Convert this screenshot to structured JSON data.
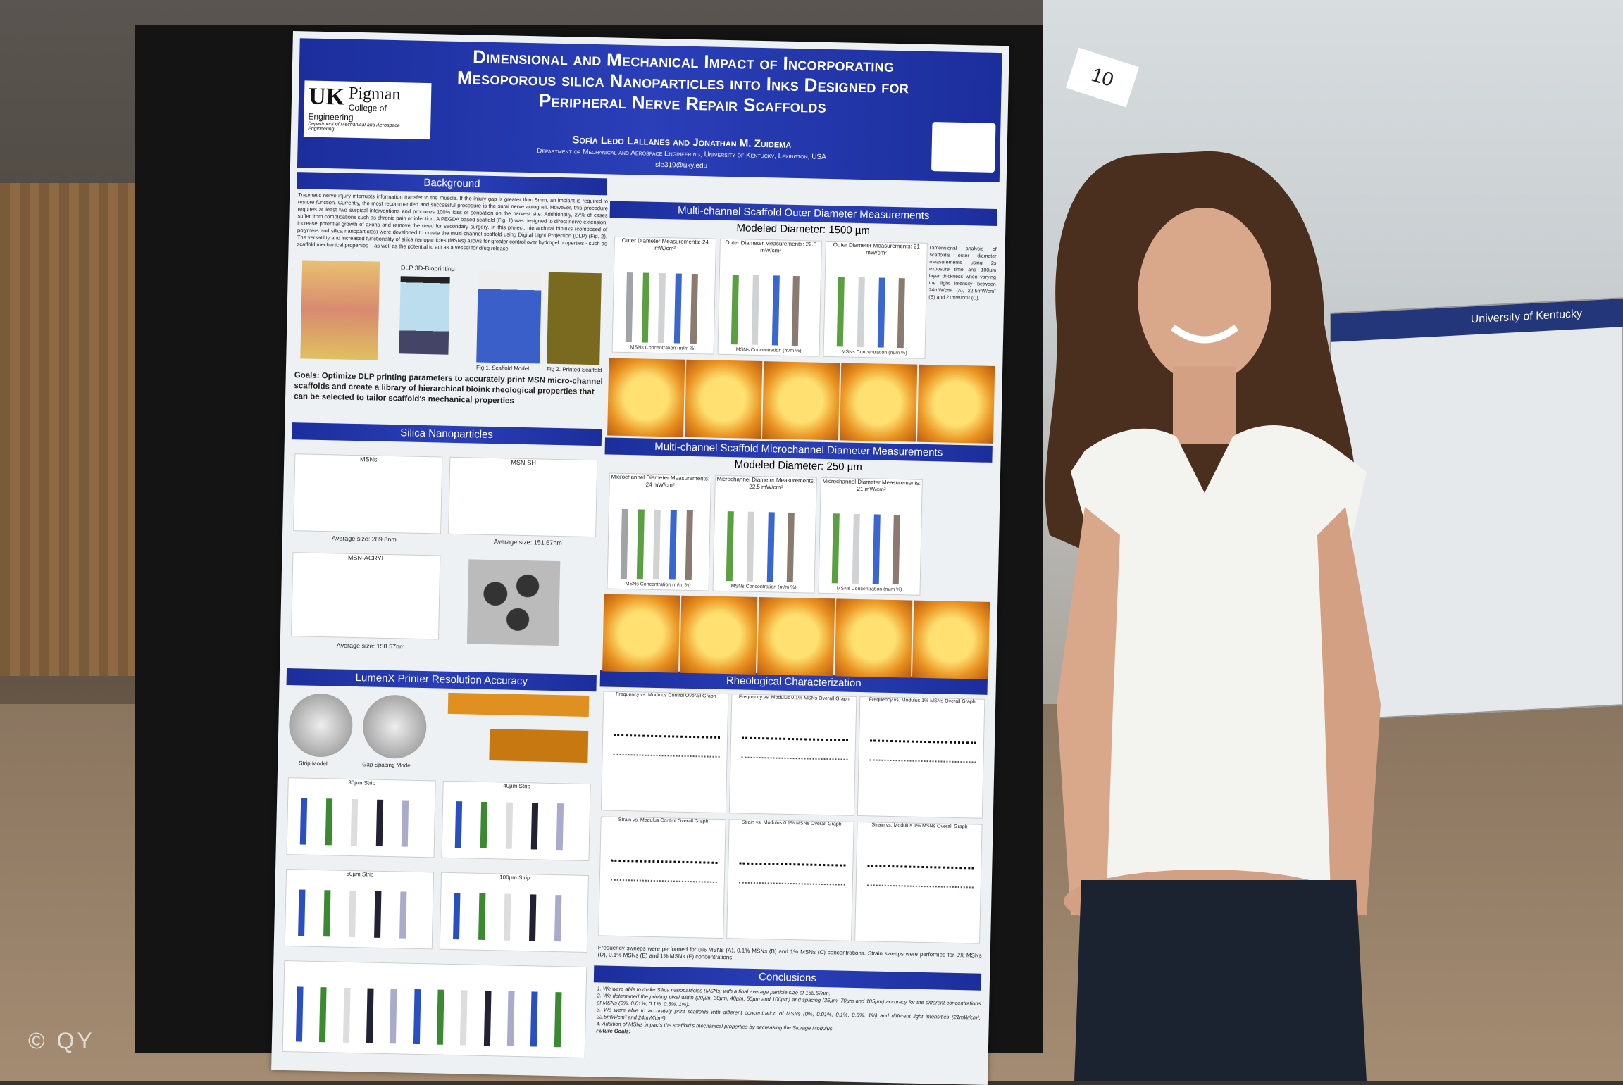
{
  "poster": {
    "title": "Dimensional and Mechanical Impact of Incorporating Mesoporous silica Nanoparticles into Inks Designed for Peripheral Nerve Repair Scaffolds",
    "authors": "Sofía Ledo Lallanes and Jonathan M. Zuidema",
    "department": "Department of Mechanical and Aerospace Engineering, University of Kentucky, Lexington, USA",
    "email": "sle319@uky.edu",
    "logo": {
      "uk": "UK",
      "name": "Pigman",
      "college": "College of Engineering",
      "dept": "Department of Mechanical and Aerospace Engineering"
    },
    "sections": {
      "background": "Background",
      "background_text": "Traumatic nerve injury interrupts information transfer to the muscle. If the injury gap is greater than 5mm, an implant is required to restore function. Currently, the most recommended and successful procedure is the sural nerve autograft. However, this procedure requires at least two surgical interventions and produces 100% loss of sensation on the harvest site. Additionally, 27% of cases suffer from complications such as chronic pain or infection. A PEGDA based scaffold (Fig. 1) was designed to direct nerve extension, increase potential growth of axons and remove the need for secondary surgery. In this project, hierarchical bioinks (composed of polymers and silica nanoparticles) were developed to create the multi-channel scaffold using Digital Light Projection (DLP) (Fig. 2). The versatility and increased functionality of silica nanoparticles (MSNs) allows for greater control over hydrogel properties - such as scaffold mechanical properties – as well as the potential to act as a vessel for drug release.",
      "fig1": "Fig 1. Scaffold Model",
      "fig2": "Fig 2. Printed Scaffold",
      "dlp": "DLP 3D-Bioprinting",
      "goals": "Goals: Optimize DLP printing parameters to accurately print MSN micro-channel scaffolds and create a library of hierarchical bioink rheological properties that can be selected to tailor scaffold's mechanical properties",
      "silica": "Silica Nanoparticles",
      "silica_labels": [
        "MSNs",
        "MSN-SH",
        "MSN-ACRYL"
      ],
      "silica_sizes": [
        "Average size: 289.8nm",
        "Average size: 151.67nm",
        "Average size: 158.57nm"
      ],
      "lumenx": "LumenX Printer Resolution Accuracy",
      "lumenx_labels": [
        "Strip Model",
        "Gap Spacing Model",
        "30µm Strip",
        "40µm Strip",
        "50µm Strip",
        "100µm Strip"
      ],
      "outer": "Multi-channel Scaffold Outer Diameter Measurements",
      "outer_model": "Modeled Diameter: 1500 µm",
      "outer_charts": [
        "Outer Diameter Measurements: 24 mW/cm²",
        "Outer Diameter Measurements: 22.5 mW/cm²",
        "Outer Diameter Measurements: 21 mW/cm²"
      ],
      "outer_note": "Dimensional analysis of scaffold's outer diameter measurements using 2s exposure time and 100µm layer thickness when varying the light intensity between 24mW/cm² (A), 22.5mW/cm² (B) and 21mW/cm² (C).",
      "micro": "Multi-channel Scaffold Microchannel Diameter Measurements",
      "micro_model": "Modeled Diameter: 250 µm",
      "micro_charts": [
        "Microchannel Diameter Measurements: 24 mW/cm²",
        "Microchannel Diameter Measurements: 22.5 mW/cm²",
        "Microchannel Diameter Measurements: 21 mW/cm²"
      ],
      "xaxis": "MSNs Concentration (m/m %)",
      "rheo": "Rheological Characterization",
      "rheo_charts": [
        "Frequency vs. Modulus Control Overall Graph",
        "Frequency vs. Modulus 0.1% MSNs Overall Graph",
        "Frequency vs. Modulus 1% MSNs Overall Graph",
        "Strain vs. Modulus Control Overall Graph",
        "Strain vs. Modulus 0.1% MSNs Overall Graph",
        "Strain vs. Modulus 1% MSNs Overall Graph"
      ],
      "rheo_note": "Frequency sweeps were performed for 0% MSNs (A), 0.1% MSNs (B) and 1% MSNs (C) concentrations. Strain sweeps were performed for 0% MSNs (D), 0.1% MSNs (E) and 1% MSNs (F) concentrations.",
      "conclusions": "Conclusions",
      "conclusion_items": [
        "1. We were able to make Silica nanoparticles (MSNs) with a final average particle size of 158.57nm.",
        "2. We determined the printing pixel width (20µm, 30µm, 40µm, 50µm and 100µm) and spacing (35µm, 70µm and 105µm) accuracy for the different concentrations of MSNs (0%, 0.01%, 0.1%, 0.5%, 1%).",
        "3. We were able to accurately print scaffolds with different concentration of MSNs (0%, 0.01%, 0.1%, 0.5%, 1%) and different light intensities (21mW/cm², 22.5mW/cm² and 24mW/cm²).",
        "4. Addition of MSNs impacts the scaffold's mechanical properties by decreasing the Storage Modulus"
      ],
      "future": "Future Goals:"
    }
  },
  "tag_number": "10",
  "second_poster": "University of Kentucky",
  "watermark": "© QY",
  "colors": {
    "banner": "#2a3fb8",
    "bar_gray": "#a0a4a8",
    "bar_green": "#5aa040",
    "bar_light": "#d0d2d4",
    "bar_blue": "#3a66d0",
    "bar_brown": "#8a7a70"
  }
}
